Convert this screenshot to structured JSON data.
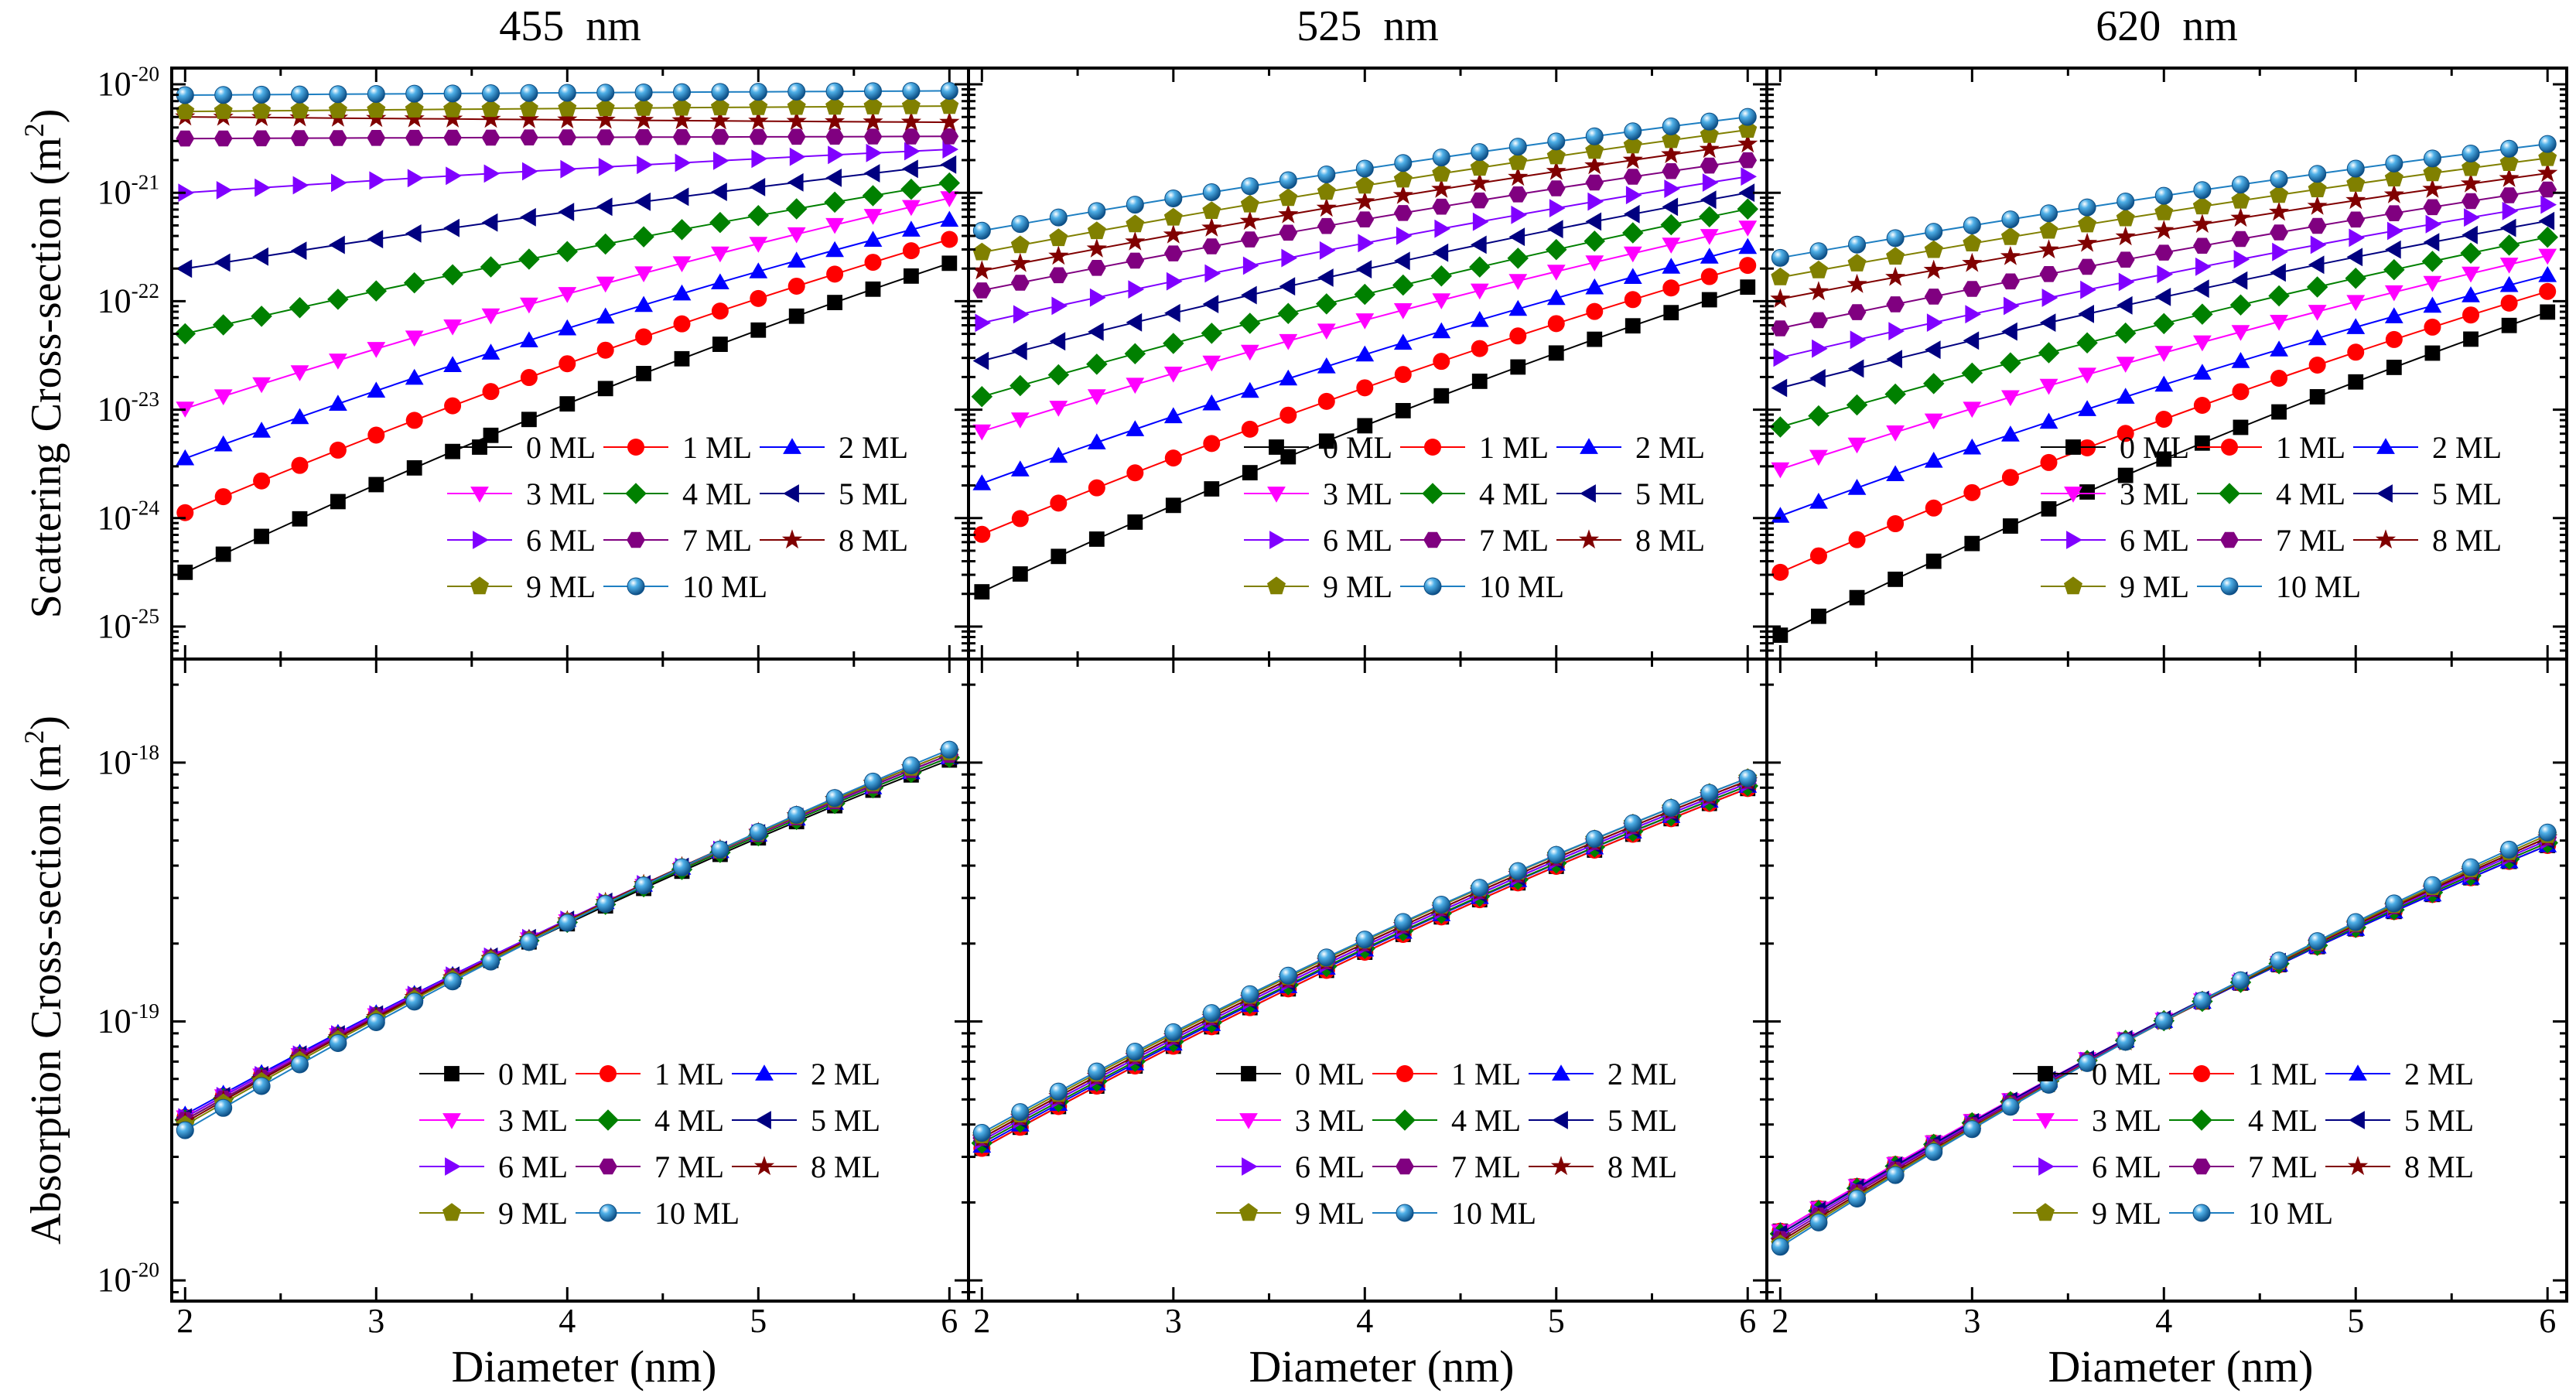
{
  "chart_data": {
    "type": "line",
    "subtitle_prefix": "",
    "x_axis": {
      "label": "Diameter (nm)",
      "range": [
        1.93,
        6.1
      ],
      "ticks": [
        2,
        3,
        4,
        5,
        6
      ],
      "tick_labels": [
        "2",
        "3",
        "4",
        "5",
        "6"
      ]
    },
    "diameters": [
      2.0,
      2.2,
      2.4,
      2.6,
      2.8,
      3.0,
      3.2,
      3.4,
      3.6,
      3.8,
      4.0,
      4.2,
      4.4,
      4.6,
      4.8,
      5.0,
      5.2,
      5.4,
      5.6,
      5.8,
      6.0
    ],
    "rows": [
      {
        "name": "scattering",
        "y_label_main": "Scattering Cross-section (m",
        "y_label_sup": "2",
        "y_label_end": ")",
        "y_scale": "log",
        "y_log_range": [
          -25.3,
          -19.85
        ],
        "y_ticks": [
          {
            "exp": -25,
            "base": "10",
            "sup": "-25"
          },
          {
            "exp": -24,
            "base": "10",
            "sup": "-24"
          },
          {
            "exp": -23,
            "base": "10",
            "sup": "-23"
          },
          {
            "exp": -22,
            "base": "10",
            "sup": "-22"
          },
          {
            "exp": -21,
            "base": "10",
            "sup": "-21"
          },
          {
            "exp": -20,
            "base": "10",
            "sup": "-20"
          }
        ]
      },
      {
        "name": "absorption",
        "y_label_main": "Absorption Cross-section (m",
        "y_label_sup": "2",
        "y_label_end": ")",
        "y_scale": "log",
        "y_log_range": [
          -20.08,
          -17.6
        ],
        "y_ticks": [
          {
            "exp": -20,
            "base": "10",
            "sup": "-20"
          },
          {
            "exp": -19,
            "base": "10",
            "sup": "-19"
          },
          {
            "exp": -18,
            "base": "10",
            "sup": "-18"
          }
        ]
      }
    ],
    "columns": [
      {
        "title": "455  nm",
        "scattering_log10_at_2nm": [
          -24.5,
          -23.95,
          -23.45,
          -22.99,
          -22.3,
          -21.7,
          -21.0,
          -20.5,
          -20.3,
          -20.25,
          -20.1
        ],
        "scattering_log10_at_6nm": [
          -21.65,
          -21.43,
          -21.25,
          -21.05,
          -20.91,
          -20.74,
          -20.6,
          -20.48,
          -20.35,
          -20.2,
          -20.06
        ],
        "absorption_log10_at_2nm": [
          -19.38,
          -19.37,
          -19.36,
          -19.37,
          -19.38,
          -19.37,
          -19.37,
          -19.38,
          -19.39,
          -19.4,
          -19.42
        ],
        "absorption_log10_at_6nm": [
          -17.99,
          -17.98,
          -17.98,
          -17.98,
          -17.98,
          -17.97,
          -17.97,
          -17.97,
          -17.96,
          -17.96,
          -17.95
        ]
      },
      {
        "title": "525  nm",
        "scattering_log10_at_2nm": [
          -24.68,
          -24.15,
          -23.68,
          -23.2,
          -22.88,
          -22.55,
          -22.2,
          -21.9,
          -21.72,
          -21.55,
          -21.35
        ],
        "scattering_log10_at_6nm": [
          -21.87,
          -21.67,
          -21.5,
          -21.32,
          -21.15,
          -21.0,
          -20.85,
          -20.7,
          -20.55,
          -20.42,
          -20.3
        ],
        "absorption_log10_at_2nm": [
          -19.49,
          -19.49,
          -19.48,
          -19.47,
          -19.47,
          -19.46,
          -19.46,
          -19.45,
          -19.45,
          -19.44,
          -19.43
        ],
        "absorption_log10_at_6nm": [
          -18.1,
          -18.1,
          -18.09,
          -18.09,
          -18.09,
          -18.08,
          -18.08,
          -18.07,
          -18.07,
          -18.06,
          -18.06
        ]
      },
      {
        "title": "620  nm",
        "scattering_log10_at_2nm": [
          -25.08,
          -24.5,
          -23.98,
          -23.55,
          -23.16,
          -22.8,
          -22.52,
          -22.25,
          -21.98,
          -21.78,
          -21.6
        ],
        "scattering_log10_at_6nm": [
          -22.1,
          -21.91,
          -21.76,
          -21.58,
          -21.41,
          -21.26,
          -21.11,
          -20.97,
          -20.82,
          -20.68,
          -20.55
        ],
        "absorption_log10_at_2nm": [
          -19.81,
          -19.81,
          -19.81,
          -19.81,
          -19.82,
          -19.82,
          -19.83,
          -19.84,
          -19.85,
          -19.86,
          -19.87
        ],
        "absorption_log10_at_6nm": [
          -18.32,
          -18.32,
          -18.32,
          -18.31,
          -18.31,
          -18.3,
          -18.3,
          -18.29,
          -18.29,
          -18.28,
          -18.27
        ]
      }
    ],
    "series": [
      {
        "name": "0 ML",
        "color": "#000000",
        "marker": "square"
      },
      {
        "name": "1 ML",
        "color": "#ff0000",
        "marker": "circle"
      },
      {
        "name": "2 ML",
        "color": "#0000ff",
        "marker": "triangle-up"
      },
      {
        "name": "3 ML",
        "color": "#ff00ff",
        "marker": "triangle-down"
      },
      {
        "name": "4 ML",
        "color": "#008000",
        "marker": "diamond"
      },
      {
        "name": "5 ML",
        "color": "#000080",
        "marker": "triangle-left"
      },
      {
        "name": "6 ML",
        "color": "#8000ff",
        "marker": "triangle-right"
      },
      {
        "name": "7 ML",
        "color": "#800080",
        "marker": "hexagon"
      },
      {
        "name": "8 ML",
        "color": "#800000",
        "marker": "star"
      },
      {
        "name": "9 ML",
        "color": "#808000",
        "marker": "pentagon"
      },
      {
        "name": "10 ML",
        "color": "#1e7fc2",
        "marker": "sphere"
      }
    ],
    "legend_position": "bottom-right",
    "grid": false
  }
}
